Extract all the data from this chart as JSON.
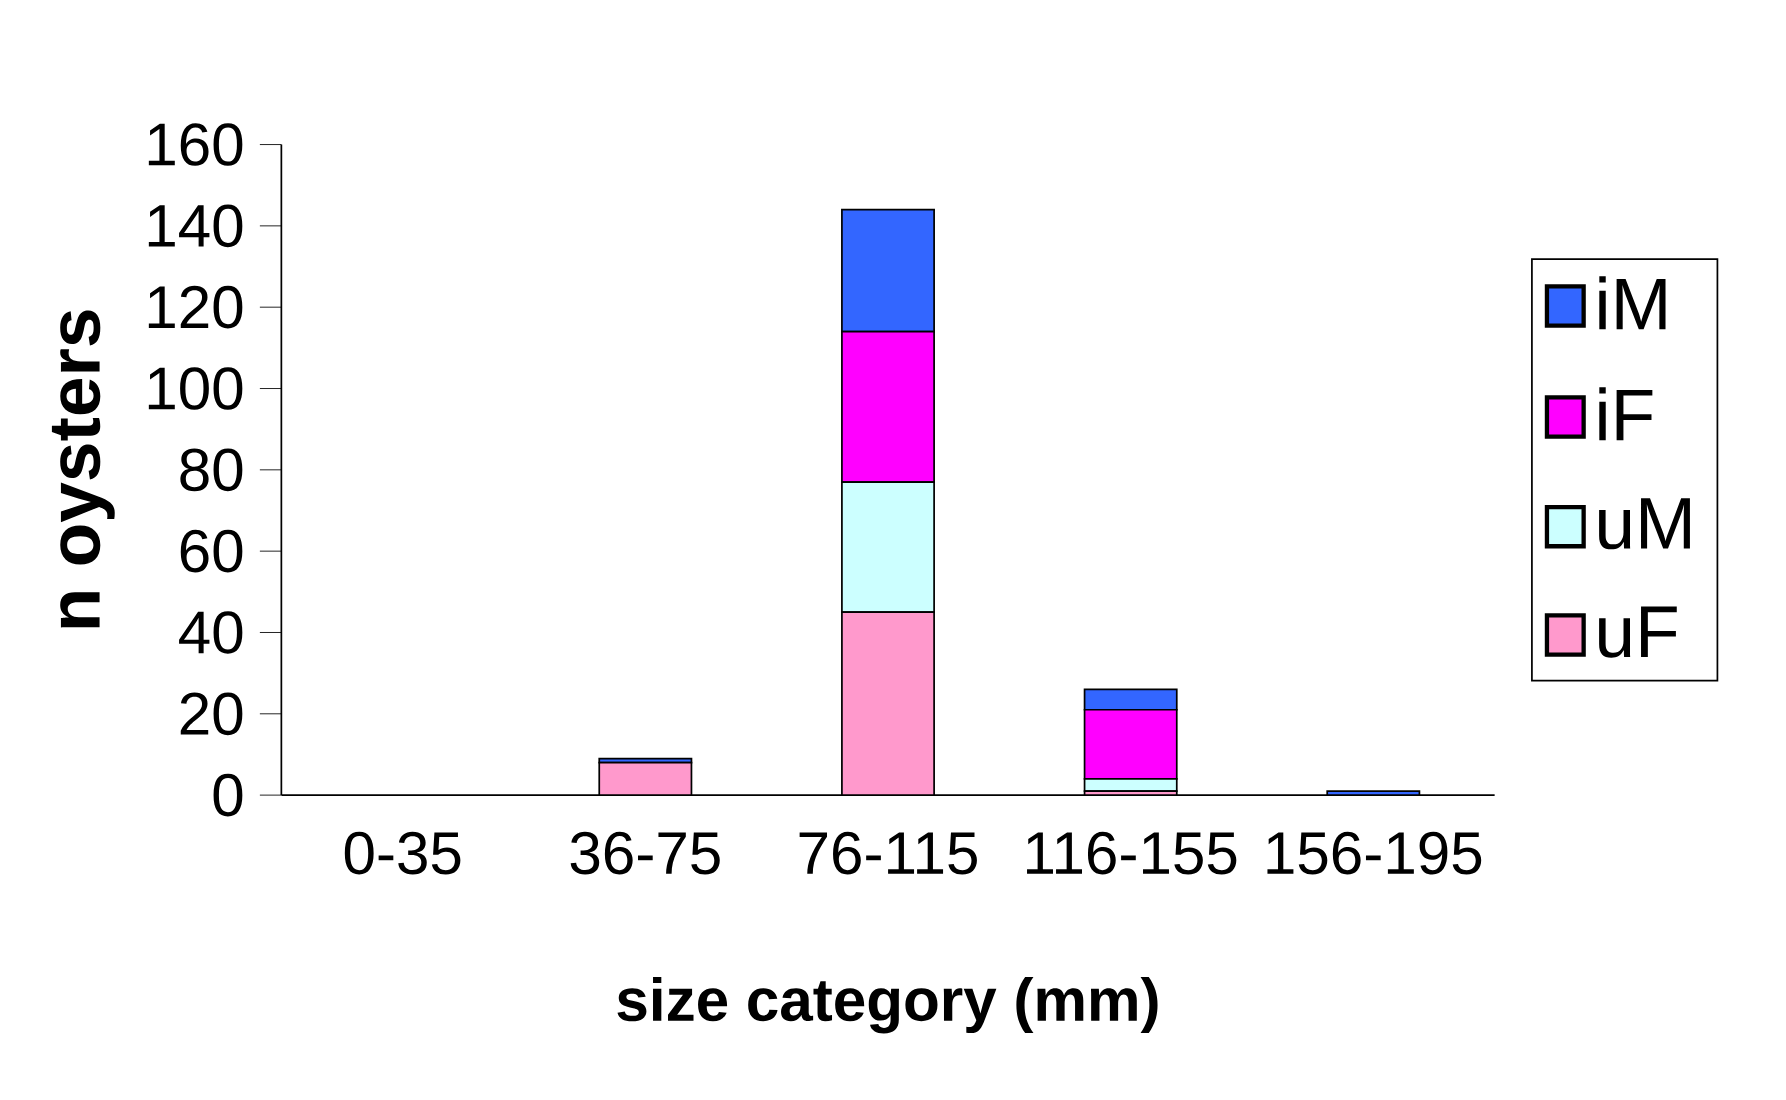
{
  "chart_data": {
    "type": "bar",
    "stacked": true,
    "xlabel": "size category (mm)",
    "ylabel": "n oysters",
    "categories": [
      "0-35",
      "36-75",
      "76-115",
      "116-155",
      "156-195"
    ],
    "series": [
      {
        "name": "uF",
        "color": "#ff99cc",
        "values": [
          0,
          8,
          45,
          1,
          0
        ]
      },
      {
        "name": "uM",
        "color": "#ccffff",
        "values": [
          0,
          0,
          32,
          3,
          0
        ]
      },
      {
        "name": "iF",
        "color": "#ff00ff",
        "values": [
          0,
          0,
          37,
          17,
          0
        ]
      },
      {
        "name": "iM",
        "color": "#3366ff",
        "values": [
          0,
          1,
          30,
          5,
          1
        ]
      }
    ],
    "ylim": [
      0,
      160
    ],
    "yticks": [
      0,
      20,
      40,
      60,
      80,
      100,
      120,
      140,
      160
    ],
    "grid": false,
    "legend": "right"
  }
}
